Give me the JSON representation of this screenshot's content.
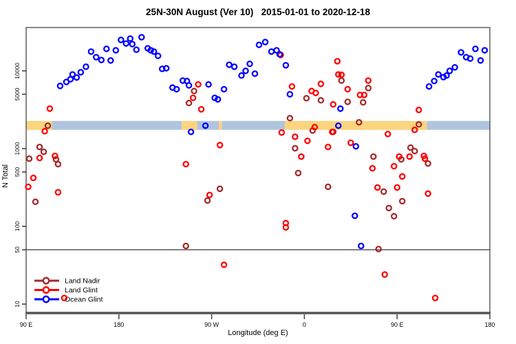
{
  "chart_data": {
    "type": "scatter",
    "title": "25N-30N August (Ver 10)   2015-01-01 to 2020-12-18",
    "xlabel": "Longitude (deg E)",
    "ylabel": "N Total",
    "x_axis": {
      "lim": [
        90,
        540
      ],
      "ticks": [
        {
          "v": 90,
          "label": "90 E"
        },
        {
          "v": 180,
          "label": "180"
        },
        {
          "v": 270,
          "label": "90 W"
        },
        {
          "v": 360,
          "label": "0"
        },
        {
          "v": 450,
          "label": "90 E"
        },
        {
          "v": 540,
          "label": "180"
        }
      ]
    },
    "y_axis": {
      "scale": "log",
      "lim": [
        10,
        36000
      ],
      "ticks": [
        10,
        50,
        100,
        500,
        1000,
        5000,
        10000
      ]
    },
    "reference_line": {
      "y": 50,
      "color": "#808080"
    },
    "surface_band": {
      "n_range": [
        1740,
        2270
      ],
      "colors": {
        "land": "#FAD47E",
        "ocean": "#B0C4DE"
      },
      "segments": [
        {
          "type": "land",
          "lon": [
            90,
            115
          ]
        },
        {
          "type": "ocean",
          "lon": [
            115,
            241
          ]
        },
        {
          "type": "land",
          "lon": [
            241,
            256
          ]
        },
        {
          "type": "ocean",
          "lon": [
            256,
            277
          ]
        },
        {
          "type": "land",
          "lon": [
            277,
            280
          ]
        },
        {
          "type": "ocean",
          "lon": [
            280,
            341
          ]
        },
        {
          "type": "land",
          "lon": [
            341,
            479
          ]
        },
        {
          "type": "ocean",
          "lon": [
            479,
            540
          ]
        }
      ]
    },
    "legend": {
      "items": [
        "Land Nadir",
        "Land Glint",
        "Ocean Glint"
      ]
    },
    "series": [
      {
        "name": "Land Nadir",
        "color": "#A52A2A",
        "points": [
          [
            111,
            1970
          ],
          [
            103,
            1050
          ],
          [
            107,
            910
          ],
          [
            93,
            743
          ],
          [
            119,
            728
          ],
          [
            121,
            631
          ],
          [
            99,
            207
          ],
          [
            253,
            5500
          ],
          [
            248,
            3850
          ],
          [
            278,
            304
          ],
          [
            266,
            215
          ],
          [
            245,
            56
          ],
          [
            346,
            2460
          ],
          [
            351,
            1010
          ],
          [
            354,
            485
          ],
          [
            362,
            4440
          ],
          [
            376,
            4180
          ],
          [
            396,
            7500
          ],
          [
            402,
            4000
          ],
          [
            417,
            3930
          ],
          [
            422,
            6010
          ],
          [
            413,
            2180
          ],
          [
            368,
            1710
          ],
          [
            388,
            1640
          ],
          [
            383,
            323
          ],
          [
            427,
            789
          ],
          [
            437,
            280
          ],
          [
            463,
            1030
          ],
          [
            467,
            929
          ],
          [
            454,
            728
          ],
          [
            480,
            644
          ],
          [
            455,
            211
          ],
          [
            442,
            172
          ],
          [
            447,
            135
          ],
          [
            432,
            51
          ],
          [
            471,
            2050
          ]
        ]
      },
      {
        "name": "Land Glint",
        "color": "#FF0000",
        "points": [
          [
            113,
            3270
          ],
          [
            108,
            1670
          ],
          [
            103,
            758
          ],
          [
            118,
            805
          ],
          [
            97,
            420
          ],
          [
            92,
            323
          ],
          [
            121,
            274
          ],
          [
            127,
            12
          ],
          [
            257,
            6700
          ],
          [
            252,
            4500
          ],
          [
            260,
            3200
          ],
          [
            278,
            1110
          ],
          [
            245,
            631
          ],
          [
            268,
            253
          ],
          [
            282,
            32
          ],
          [
            337,
            16000
          ],
          [
            392,
            13300
          ],
          [
            393,
            9000
          ],
          [
            396,
            8900
          ],
          [
            348,
            6300
          ],
          [
            367,
            5500
          ],
          [
            371,
            5200
          ],
          [
            376,
            6800
          ],
          [
            402,
            5800
          ],
          [
            422,
            7500
          ],
          [
            414,
            4900
          ],
          [
            418,
            4900
          ],
          [
            388,
            3700
          ],
          [
            370,
            1890
          ],
          [
            387,
            1640
          ],
          [
            338,
            1610
          ],
          [
            467,
            1740
          ],
          [
            441,
            1540
          ],
          [
            471,
            3140
          ],
          [
            351,
            1420
          ],
          [
            363,
            1260
          ],
          [
            383,
            1050
          ],
          [
            405,
            1190
          ],
          [
            357,
            789
          ],
          [
            426,
            558
          ],
          [
            447,
            594
          ],
          [
            462,
            789
          ],
          [
            452,
            789
          ],
          [
            476,
            805
          ],
          [
            477,
            743
          ],
          [
            455,
            438
          ],
          [
            431,
            316
          ],
          [
            450,
            316
          ],
          [
            480,
            264
          ],
          [
            438,
            24
          ],
          [
            487,
            12
          ],
          [
            342,
            110
          ],
          [
            342,
            97
          ]
        ]
      },
      {
        "name": "Ocean Glint",
        "color": "#0000FF",
        "points": [
          [
            123,
            6400
          ],
          [
            129,
            7200
          ],
          [
            133,
            7800
          ],
          [
            135,
            9000
          ],
          [
            139,
            8200
          ],
          [
            143,
            9600
          ],
          [
            148,
            11300
          ],
          [
            153,
            17700
          ],
          [
            158,
            15000
          ],
          [
            163,
            13800
          ],
          [
            168,
            19200
          ],
          [
            172,
            13600
          ],
          [
            177,
            18400
          ],
          [
            182,
            25000
          ],
          [
            187,
            22500
          ],
          [
            191,
            26000
          ],
          [
            193,
            22100
          ],
          [
            197,
            18700
          ],
          [
            202,
            27100
          ],
          [
            208,
            19500
          ],
          [
            211,
            18400
          ],
          [
            214,
            17700
          ],
          [
            218,
            15600
          ],
          [
            222,
            10600
          ],
          [
            226,
            10800
          ],
          [
            232,
            6100
          ],
          [
            236,
            5800
          ],
          [
            242,
            7500
          ],
          [
            246,
            7400
          ],
          [
            248,
            6500
          ],
          [
            250,
            1640
          ],
          [
            264,
            1970
          ],
          [
            267,
            6700
          ],
          [
            273,
            4500
          ],
          [
            276,
            4300
          ],
          [
            282,
            5800
          ],
          [
            287,
            12000
          ],
          [
            292,
            11300
          ],
          [
            299,
            8700
          ],
          [
            303,
            10000
          ],
          [
            307,
            12300
          ],
          [
            312,
            9200
          ],
          [
            316,
            21600
          ],
          [
            322,
            23500
          ],
          [
            328,
            17700
          ],
          [
            333,
            18400
          ],
          [
            336,
            16300
          ],
          [
            342,
            11800
          ],
          [
            346,
            5000
          ],
          [
            393,
            1970
          ],
          [
            395,
            3270
          ],
          [
            410,
            1070
          ],
          [
            409,
            137
          ],
          [
            415,
            56
          ],
          [
            481,
            6300
          ],
          [
            486,
            7400
          ],
          [
            490,
            9000
          ],
          [
            495,
            8300
          ],
          [
            498,
            8700
          ],
          [
            501,
            10000
          ],
          [
            506,
            11100
          ],
          [
            512,
            17300
          ],
          [
            517,
            15000
          ],
          [
            521,
            14400
          ],
          [
            526,
            19200
          ],
          [
            531,
            13600
          ],
          [
            535,
            18400
          ]
        ]
      }
    ]
  }
}
